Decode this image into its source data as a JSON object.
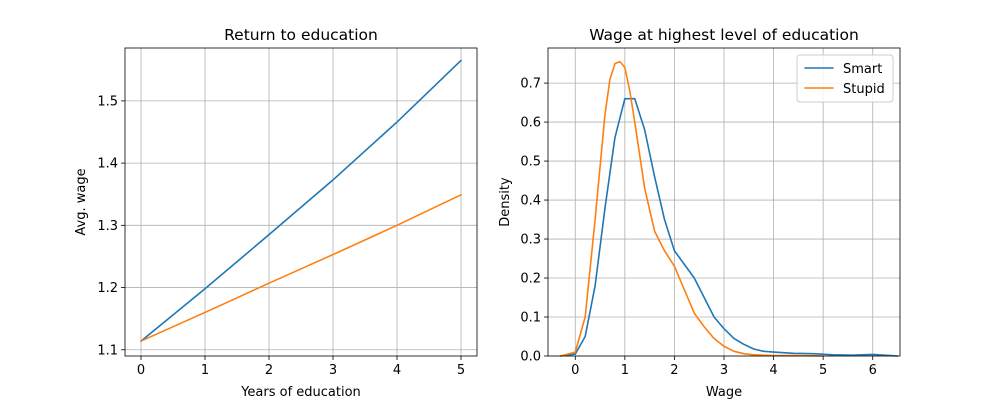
{
  "chart_data": [
    {
      "type": "line",
      "title": "Return to education",
      "xlabel": "Years of education",
      "ylabel": "Avg. wage",
      "xlim": [
        -0.25,
        5.25
      ],
      "ylim": [
        1.09,
        1.585
      ],
      "xticks": [
        0,
        1,
        2,
        3,
        4,
        5
      ],
      "yticks": [
        1.1,
        1.2,
        1.3,
        1.4,
        1.5
      ],
      "xtick_labels": [
        "0",
        "1",
        "2",
        "3",
        "4",
        "5"
      ],
      "ytick_labels": [
        "1.1",
        "1.2",
        "1.3",
        "1.4",
        "1.5"
      ],
      "grid": true,
      "x": [
        0,
        1,
        2,
        3,
        4,
        5
      ],
      "series": [
        {
          "color": "#1f77b4",
          "values": [
            1.114,
            1.198,
            1.285,
            1.373,
            1.466,
            1.565
          ]
        },
        {
          "color": "#ff7f0e",
          "values": [
            1.114,
            1.16,
            1.207,
            1.253,
            1.3,
            1.349
          ]
        }
      ]
    },
    {
      "type": "line",
      "title": "Wage at highest level of education",
      "xlabel": "Wage",
      "ylabel": "Density",
      "xlim": [
        -0.55,
        6.55
      ],
      "ylim": [
        0.0,
        0.79
      ],
      "xticks": [
        0,
        1,
        2,
        3,
        4,
        5,
        6
      ],
      "yticks": [
        0.0,
        0.1,
        0.2,
        0.3,
        0.4,
        0.5,
        0.6,
        0.7
      ],
      "xtick_labels": [
        "0",
        "1",
        "2",
        "3",
        "4",
        "5",
        "6"
      ],
      "ytick_labels": [
        "0.0",
        "0.1",
        "0.2",
        "0.3",
        "0.4",
        "0.5",
        "0.6",
        "0.7"
      ],
      "grid": true,
      "legend": "top-right",
      "series": [
        {
          "name": "Smart",
          "color": "#1f77b4",
          "x": [
            -0.3,
            0.0,
            0.2,
            0.4,
            0.6,
            0.8,
            1.0,
            1.2,
            1.4,
            1.6,
            1.8,
            2.0,
            2.2,
            2.4,
            2.6,
            2.8,
            3.0,
            3.2,
            3.4,
            3.6,
            3.8,
            4.0,
            4.4,
            4.8,
            5.2,
            5.6,
            6.0,
            6.5
          ],
          "values": [
            0.0,
            0.005,
            0.05,
            0.18,
            0.38,
            0.56,
            0.66,
            0.66,
            0.58,
            0.46,
            0.35,
            0.27,
            0.235,
            0.2,
            0.15,
            0.1,
            0.07,
            0.045,
            0.03,
            0.018,
            0.012,
            0.01,
            0.007,
            0.006,
            0.003,
            0.002,
            0.004,
            0.0
          ]
        },
        {
          "name": "Stupid",
          "color": "#ff7f0e",
          "x": [
            -0.3,
            0.0,
            0.2,
            0.4,
            0.6,
            0.7,
            0.8,
            0.9,
            1.0,
            1.1,
            1.2,
            1.4,
            1.6,
            1.8,
            2.0,
            2.2,
            2.4,
            2.6,
            2.8,
            3.0,
            3.2,
            3.4,
            3.6,
            3.8,
            4.0,
            4.4,
            4.8,
            5.0
          ],
          "values": [
            0.0,
            0.01,
            0.1,
            0.35,
            0.62,
            0.71,
            0.75,
            0.755,
            0.74,
            0.68,
            0.6,
            0.43,
            0.32,
            0.27,
            0.23,
            0.17,
            0.11,
            0.075,
            0.045,
            0.025,
            0.012,
            0.006,
            0.003,
            0.002,
            0.001,
            0.001,
            0.0005,
            0.0
          ]
        }
      ]
    }
  ]
}
